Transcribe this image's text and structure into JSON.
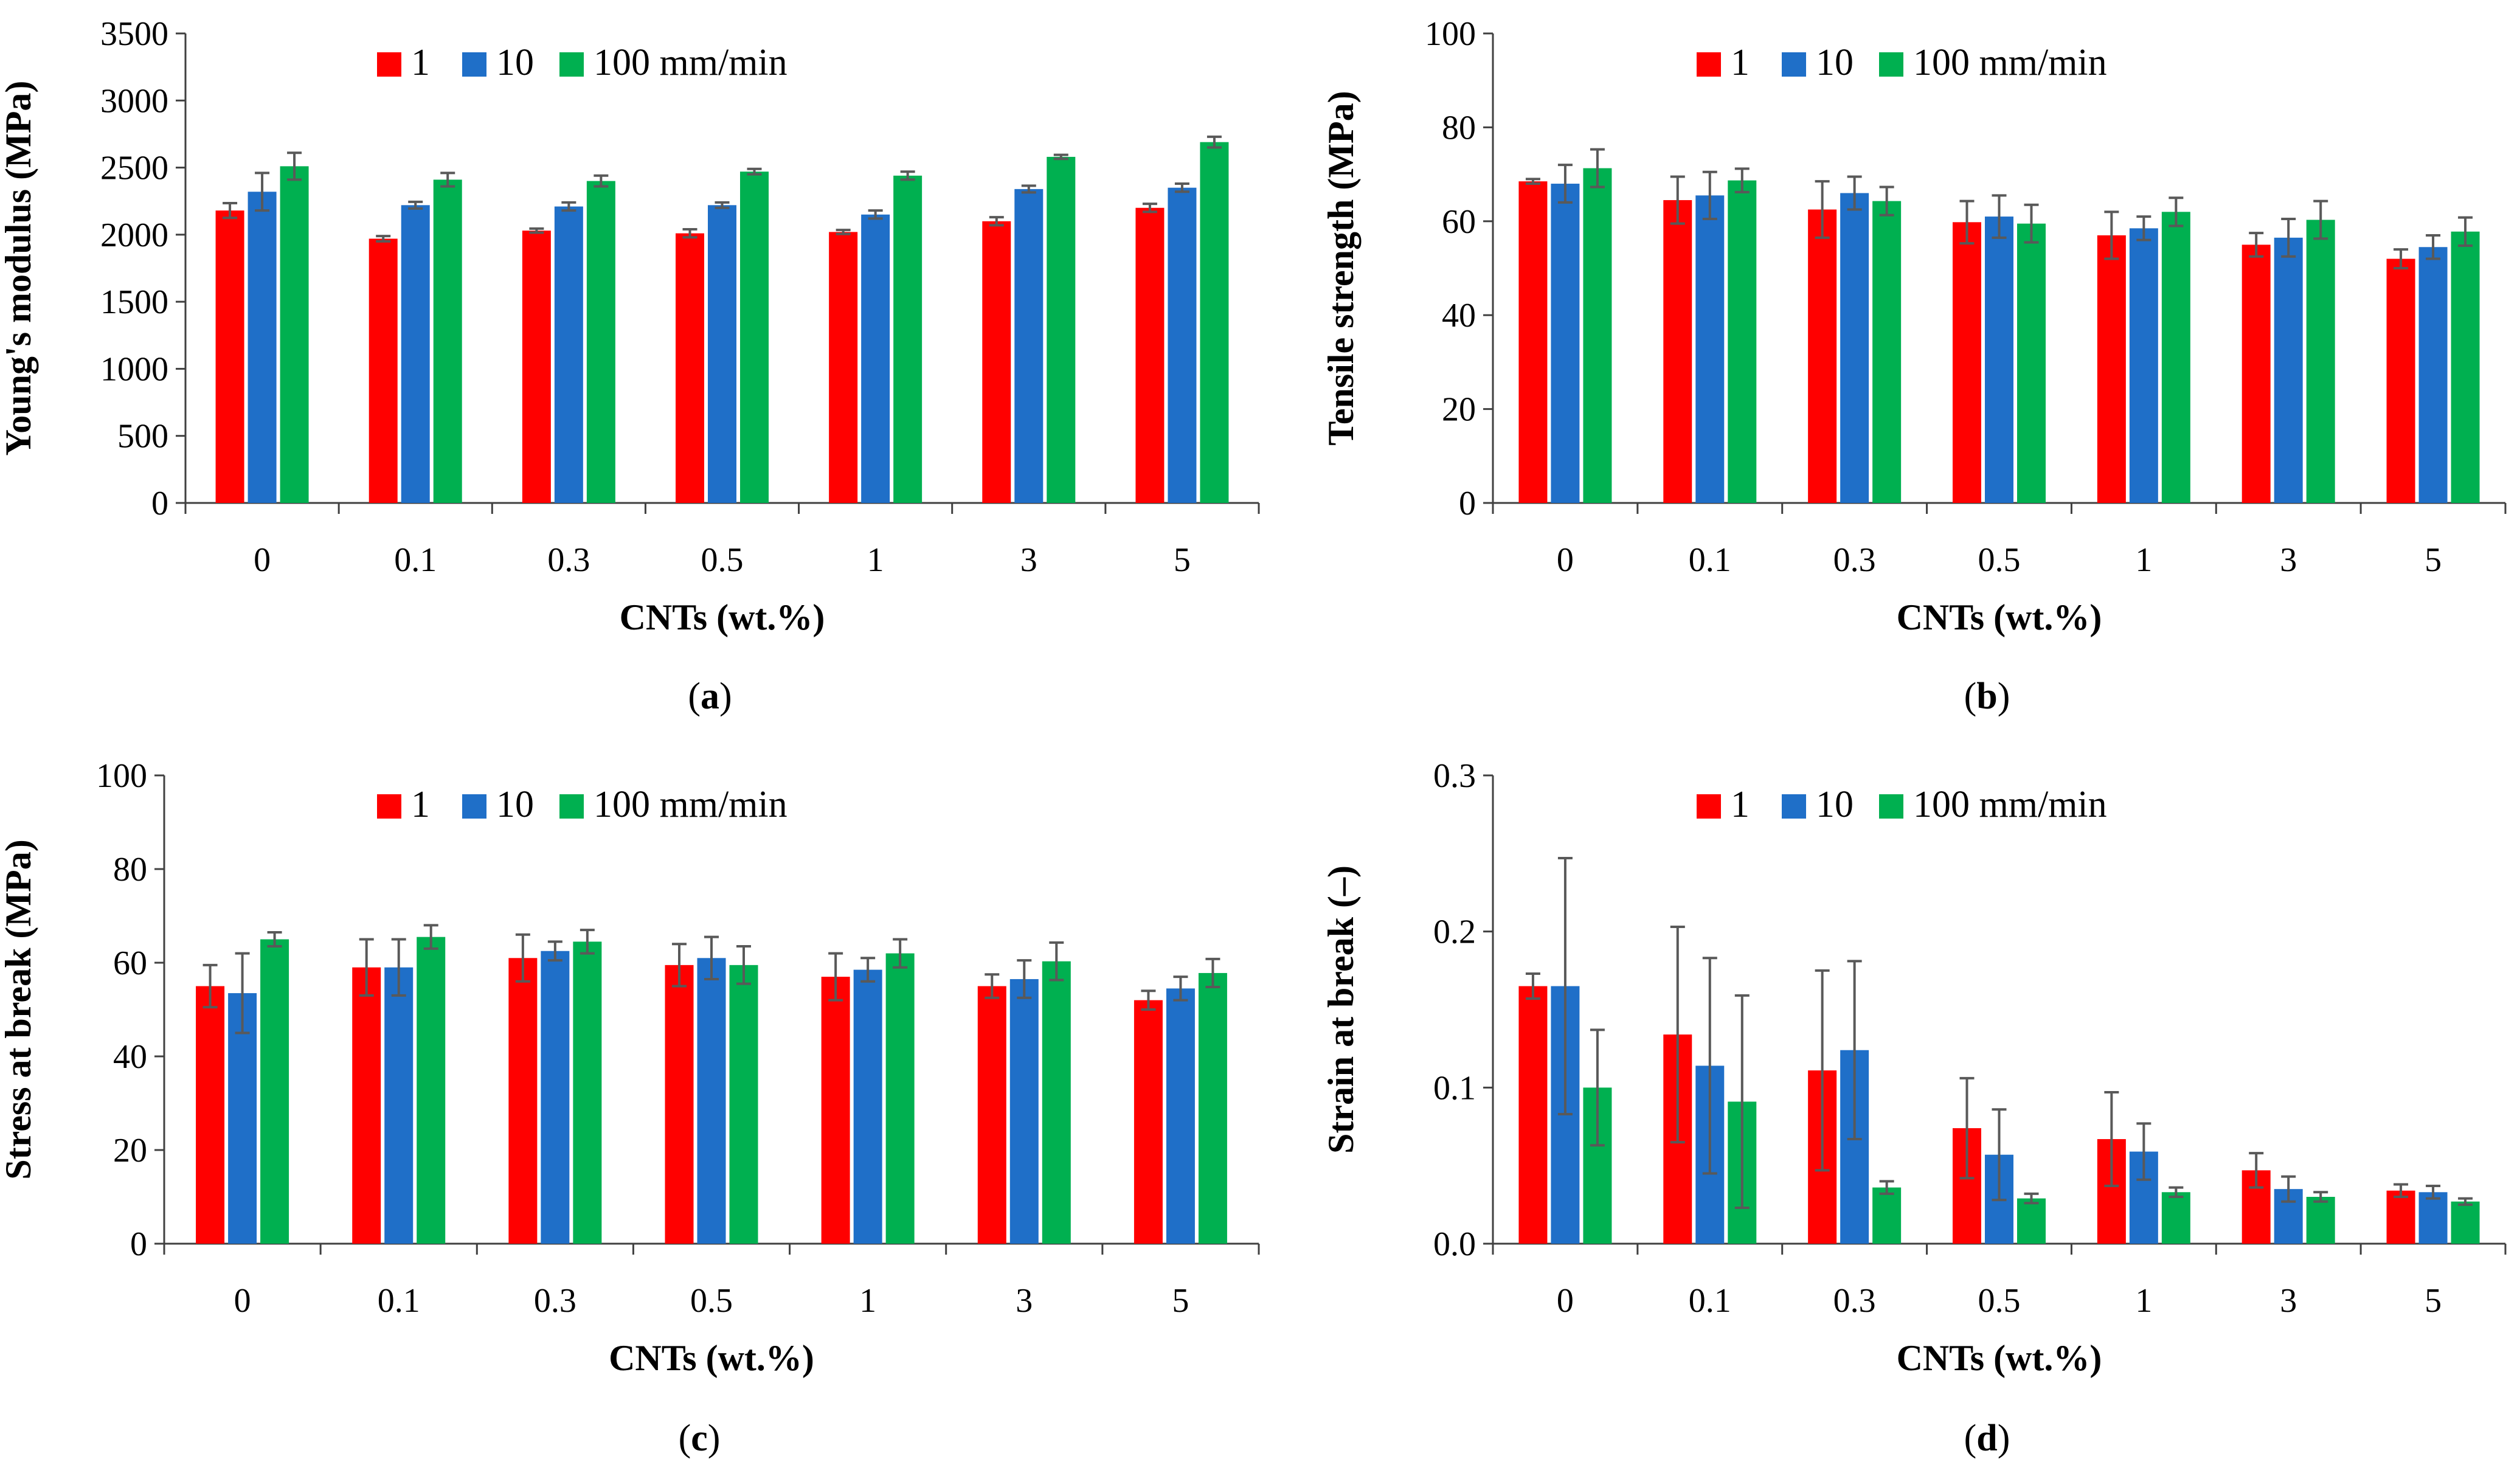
{
  "figure": {
    "colors": {
      "series_1": "#ff0000",
      "series_10": "#1f6fc8",
      "series_100": "#00b050",
      "errorbar": "#595959",
      "axis": "#404040"
    }
  },
  "chart_data": [
    {
      "id": "a",
      "type": "bar",
      "panel_label": "a",
      "ylabel": "Young's modulus (MPa)",
      "xlabel": "CNTs (wt.%)",
      "categories": [
        "0",
        "0.1",
        "0.3",
        "0.5",
        "1",
        "3",
        "5"
      ],
      "ylim": [
        0,
        3500
      ],
      "yticks": [
        "0",
        "500",
        "1000",
        "1500",
        "2000",
        "2500",
        "3000",
        "3500"
      ],
      "ytick_values": [
        0,
        500,
        1000,
        1500,
        2000,
        2500,
        3000,
        3500
      ],
      "legend": [
        "1",
        "10",
        "100 mm/min"
      ],
      "series": [
        {
          "name": "1",
          "values": [
            2180,
            1970,
            2030,
            2010,
            2020,
            2100,
            2200
          ],
          "errors": [
            55,
            20,
            15,
            30,
            15,
            30,
            30
          ]
        },
        {
          "name": "10",
          "values": [
            2320,
            2220,
            2210,
            2220,
            2150,
            2340,
            2350
          ],
          "errors": [
            140,
            25,
            30,
            20,
            30,
            25,
            30
          ]
        },
        {
          "name": "100 mm/min",
          "values": [
            2510,
            2410,
            2400,
            2470,
            2440,
            2580,
            2690
          ],
          "errors": [
            100,
            50,
            40,
            20,
            30,
            15,
            40
          ]
        }
      ]
    },
    {
      "id": "b",
      "type": "bar",
      "panel_label": "b",
      "ylabel": "Tensile strength (MPa)",
      "xlabel": "CNTs (wt.%)",
      "categories": [
        "0",
        "0.1",
        "0.3",
        "0.5",
        "1",
        "3",
        "5"
      ],
      "ylim": [
        0,
        100
      ],
      "yticks": [
        "0",
        "20",
        "40",
        "60",
        "80",
        "100"
      ],
      "ytick_values": [
        0,
        20,
        40,
        60,
        80,
        100
      ],
      "legend": [
        "1",
        "10",
        "100 mm/min"
      ],
      "series": [
        {
          "name": "1",
          "values": [
            68.5,
            64.5,
            62.5,
            59.8,
            57,
            55,
            52
          ],
          "errors": [
            0.5,
            5,
            6,
            4.5,
            5,
            2.5,
            2
          ]
        },
        {
          "name": "10",
          "values": [
            68,
            65.5,
            66,
            61,
            58.5,
            56.5,
            54.5
          ],
          "errors": [
            4,
            5,
            3.5,
            4.5,
            2.5,
            4,
            2.5
          ]
        },
        {
          "name": "100 mm/min",
          "values": [
            71.3,
            68.7,
            64.3,
            59.5,
            62,
            60.3,
            57.8
          ],
          "errors": [
            4,
            2.5,
            3,
            4,
            3,
            4,
            3
          ]
        }
      ]
    },
    {
      "id": "c",
      "type": "bar",
      "panel_label": "c",
      "ylabel": "Stress at break (MPa)",
      "xlabel": "CNTs (wt.%)",
      "categories": [
        "0",
        "0.1",
        "0.3",
        "0.5",
        "1",
        "3",
        "5"
      ],
      "ylim": [
        0,
        100
      ],
      "yticks": [
        "0",
        "20",
        "40",
        "60",
        "80",
        "100"
      ],
      "ytick_values": [
        0,
        20,
        40,
        60,
        80,
        100
      ],
      "legend": [
        "1",
        "10",
        "100 mm/min"
      ],
      "series": [
        {
          "name": "1",
          "values": [
            55,
            59,
            61,
            59.5,
            57,
            55,
            52
          ],
          "errors": [
            4.5,
            6,
            5,
            4.5,
            5,
            2.5,
            2
          ]
        },
        {
          "name": "10",
          "values": [
            53.5,
            59,
            62.5,
            61,
            58.5,
            56.5,
            54.5
          ],
          "errors": [
            8.5,
            6,
            2,
            4.5,
            2.5,
            4,
            2.5
          ]
        },
        {
          "name": "100 mm/min",
          "values": [
            65,
            65.5,
            64.5,
            59.5,
            62,
            60.3,
            57.8
          ],
          "errors": [
            1.5,
            2.5,
            2.5,
            4,
            3,
            4,
            3
          ]
        }
      ]
    },
    {
      "id": "d",
      "type": "bar",
      "panel_label": "d",
      "ylabel": "Strain at break (–)",
      "xlabel": "CNTs (wt.%)",
      "categories": [
        "0",
        "0.1",
        "0.3",
        "0.5",
        "1",
        "3",
        "5"
      ],
      "ylim": [
        0,
        0.3
      ],
      "yticks": [
        "0.0",
        "0.1",
        "0.2",
        "0.3"
      ],
      "ytick_values": [
        0,
        0.1,
        0.2,
        0.3
      ],
      "legend": [
        "1",
        "10",
        "100 mm/min"
      ],
      "series": [
        {
          "name": "1",
          "values": [
            0.165,
            0.134,
            0.111,
            0.074,
            0.067,
            0.047,
            0.034
          ],
          "errors": [
            0.008,
            0.069,
            0.064,
            0.032,
            0.03,
            0.011,
            0.004
          ]
        },
        {
          "name": "10",
          "values": [
            0.165,
            0.114,
            0.124,
            0.057,
            0.059,
            0.035,
            0.033
          ],
          "errors": [
            0.082,
            0.069,
            0.057,
            0.029,
            0.018,
            0.008,
            0.004
          ]
        },
        {
          "name": "100 mm/min",
          "values": [
            0.1,
            0.091,
            0.036,
            0.029,
            0.033,
            0.03,
            0.027
          ],
          "errors": [
            0.037,
            0.068,
            0.004,
            0.003,
            0.003,
            0.003,
            0.002
          ]
        }
      ]
    }
  ]
}
